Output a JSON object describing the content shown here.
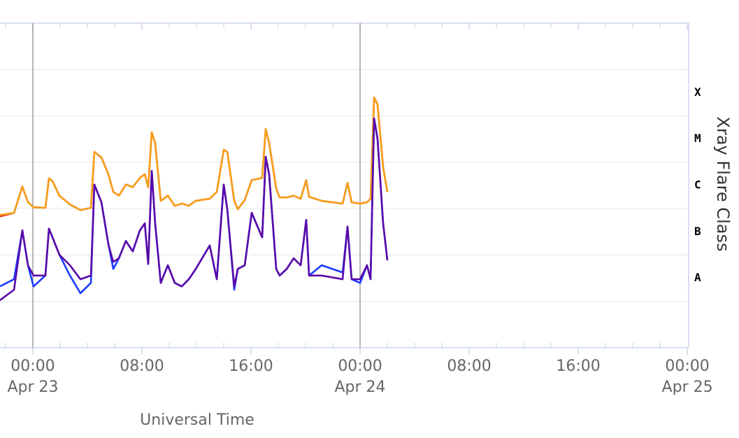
{
  "chart_data": {
    "type": "line",
    "x_label": "Universal Time",
    "y2_label": "Xray Flare Class",
    "log_scale": true,
    "grid": true,
    "xlim": [
      -2.41,
      48.1
    ],
    "xticks": [
      {
        "value": 0,
        "label": "00:00",
        "date": "Apr 23"
      },
      {
        "value": 8,
        "label": "08:00"
      },
      {
        "value": 16,
        "label": "16:00"
      },
      {
        "value": 24,
        "label": "00:00",
        "date": "Apr 24"
      },
      {
        "value": 32,
        "label": "08:00"
      },
      {
        "value": 40,
        "label": "16:00"
      },
      {
        "value": 48,
        "label": "00:00",
        "date": "Apr 25"
      }
    ],
    "minor_xticks": [
      -2,
      2,
      4,
      6,
      10,
      12,
      14,
      18,
      20,
      22,
      26,
      28,
      30,
      34,
      36,
      38,
      42,
      44,
      46
    ],
    "plot_lines": [
      0,
      24
    ],
    "ylim": [
      1e-09,
      0.01
    ],
    "yticks": [
      1e-09,
      1e-08,
      1e-07,
      1e-06,
      1e-05,
      0.0001,
      0.001,
      0.01
    ],
    "flare_classes": [
      {
        "value": 1e-08,
        "label": "A"
      },
      {
        "value": 1e-07,
        "label": "B"
      },
      {
        "value": 1e-06,
        "label": "C"
      },
      {
        "value": 1e-05,
        "label": "M"
      },
      {
        "value": 0.0001,
        "label": "X"
      }
    ],
    "x": [
      -2.41,
      -1.38,
      -0.77,
      -0.36,
      0.05,
      0.92,
      1.18,
      1.44,
      1.95,
      2.72,
      3.49,
      4.26,
      4.51,
      5.03,
      5.54,
      5.9,
      6.31,
      6.82,
      7.33,
      7.85,
      8.21,
      8.46,
      8.72,
      8.97,
      9.38,
      9.9,
      10.41,
      10.92,
      11.44,
      11.95,
      12.97,
      13.49,
      14.0,
      14.26,
      14.77,
      15.03,
      15.54,
      16.05,
      16.82,
      17.08,
      17.33,
      17.85,
      18.1,
      18.62,
      19.13,
      19.64,
      20.05,
      20.26,
      21.18,
      22.72,
      23.08,
      23.38,
      24.0,
      24.51,
      24.77,
      25.03,
      25.28,
      25.69,
      26.0
    ],
    "series": [
      {
        "color": "#e8261e",
        "values": [
          6.8e-07,
          8.1e-07,
          3e-06,
          1.37e-06,
          1.07e-06,
          1.04e-06,
          4.5e-06,
          3.9e-06,
          1.9e-06,
          1.23e-06,
          9.3e-07,
          1.04e-06,
          1.67e-05,
          1.26e-05,
          5.5e-06,
          2.3e-06,
          1.9e-06,
          3.3e-06,
          2.9e-06,
          4.6e-06,
          5.5e-06,
          2.9e-06,
          4.4e-05,
          2.6e-05,
          1.47e-06,
          1.9e-06,
          1.15e-06,
          1.28e-06,
          1.15e-06,
          1.47e-06,
          1.63e-06,
          2.3e-06,
          1.85e-05,
          1.67e-05,
          1.47e-06,
          9.7e-07,
          1.52e-06,
          4.1e-06,
          4.6e-06,
          5.2e-05,
          2.6e-05,
          2.7e-06,
          1.74e-06,
          1.74e-06,
          1.9e-06,
          1.63e-06,
          4.1e-06,
          1.8e-06,
          1.47e-06,
          1.28e-06,
          3.6e-06,
          1.37e-06,
          1.28e-06,
          1.37e-06,
          1.63e-06,
          0.00025,
          0.000177,
          7.8e-06,
          2.3e-06
        ]
      },
      {
        "color": "#f5a01a",
        "values": [
          7.3e-07,
          8.1e-07,
          3e-06,
          1.37e-06,
          1.07e-06,
          1.04e-06,
          4.5e-06,
          3.9e-06,
          1.9e-06,
          1.23e-06,
          9.3e-07,
          1.04e-06,
          1.67e-05,
          1.26e-05,
          5.5e-06,
          2.3e-06,
          1.9e-06,
          3.3e-06,
          2.9e-06,
          4.6e-06,
          5.5e-06,
          2.9e-06,
          4.4e-05,
          2.6e-05,
          1.47e-06,
          1.9e-06,
          1.15e-06,
          1.28e-06,
          1.15e-06,
          1.47e-06,
          1.63e-06,
          2.3e-06,
          1.85e-05,
          1.67e-05,
          1.47e-06,
          9.7e-07,
          1.52e-06,
          4.1e-06,
          4.6e-06,
          5.2e-05,
          2.6e-05,
          2.7e-06,
          1.74e-06,
          1.74e-06,
          1.9e-06,
          1.63e-06,
          4.1e-06,
          1.8e-06,
          1.47e-06,
          1.28e-06,
          3.6e-06,
          1.37e-06,
          1.28e-06,
          1.37e-06,
          1.63e-06,
          0.00025,
          0.000177,
          7.8e-06,
          2.3e-06
        ]
      },
      {
        "color": "#1a3cff",
        "values": [
          2.1e-08,
          3e-08,
          3.4e-07,
          6e-08,
          2.1e-08,
          3.6e-08,
          3.7e-07,
          2.4e-07,
          1.01e-07,
          3.6e-08,
          1.5e-08,
          2.5e-08,
          3.3e-06,
          1.37e-06,
          1.7e-07,
          5e-08,
          8.5e-08,
          2e-07,
          1.2e-07,
          3.4e-07,
          4.8e-07,
          6.4e-08,
          6.5e-06,
          4.8e-07,
          2.5e-08,
          6e-08,
          2.5e-08,
          2.1e-08,
          3e-08,
          5e-08,
          1.6e-07,
          3e-08,
          3.3e-06,
          9.7e-07,
          1.78e-08,
          5e-08,
          6e-08,
          8.1e-07,
          2.4e-07,
          1.31e-05,
          5.5e-06,
          5e-08,
          3.6e-08,
          5e-08,
          8.5e-08,
          6e-08,
          5.7e-07,
          3.6e-08,
          6e-08,
          4.2e-08,
          4.1e-07,
          3e-08,
          2.5e-08,
          6e-08,
          3e-08,
          8.8e-05,
          3.2e-05,
          4.8e-07,
          7.7e-08
        ]
      },
      {
        "color": "#5a0aa8",
        "values": [
          1.06e-08,
          1.78e-08,
          3.4e-07,
          6e-08,
          3.6e-08,
          3.6e-08,
          3.7e-07,
          2.4e-07,
          1.01e-07,
          6e-08,
          3e-08,
          3.6e-08,
          3.3e-06,
          1.37e-06,
          1.7e-07,
          7.1e-08,
          8.5e-08,
          2e-07,
          1.2e-07,
          3.4e-07,
          4.8e-07,
          6.4e-08,
          6.5e-06,
          4.8e-07,
          2.5e-08,
          6e-08,
          2.5e-08,
          2.1e-08,
          3e-08,
          5e-08,
          1.6e-07,
          3e-08,
          3.3e-06,
          9.7e-07,
          2.1e-08,
          5e-08,
          6e-08,
          8.1e-07,
          2.4e-07,
          1.31e-05,
          5.5e-06,
          5e-08,
          3.6e-08,
          5e-08,
          8.5e-08,
          6e-08,
          5.7e-07,
          3.6e-08,
          3.6e-08,
          3e-08,
          4.1e-07,
          3e-08,
          3e-08,
          6e-08,
          3e-08,
          8.8e-05,
          3.2e-05,
          4.8e-07,
          7.7e-08
        ]
      }
    ]
  }
}
